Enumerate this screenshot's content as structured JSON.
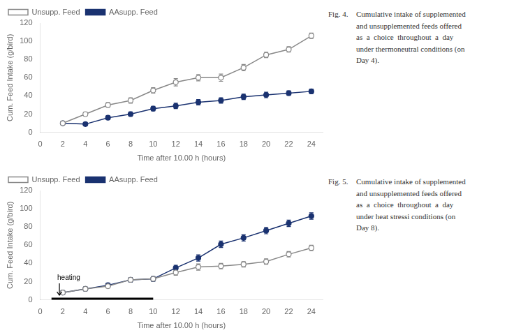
{
  "chart_data": [
    {
      "type": "line",
      "caption_title": "Fig. 4.",
      "caption": "Cumulative intake of supplemented\nand unsupplemented feeds offered\nas  a  choice  throughout  a  day\nunder thermoneutral conditions (on\nDay 4).",
      "xlabel": "Time after 10.00 h (hours)",
      "ylabel": "Cum. Feed Intake (g/bird)",
      "x": [
        2,
        4,
        6,
        8,
        10,
        12,
        14,
        16,
        18,
        20,
        22,
        24
      ],
      "series": [
        {
          "name": "Unsupp. Feed",
          "color": "#888888",
          "marker": "open_circle",
          "values": [
            10,
            20,
            30,
            35,
            46,
            55,
            60,
            60,
            71,
            85,
            91,
            106
          ],
          "errors": [
            1.5,
            2,
            2.5,
            3,
            3,
            4,
            3.5,
            4,
            3.5,
            3,
            3,
            3
          ]
        },
        {
          "name": "AAsupp. Feed",
          "color": "#1a3270",
          "marker": "circle",
          "values": [
            10,
            9,
            16,
            20,
            26,
            29,
            33,
            35,
            39,
            41,
            43,
            45
          ],
          "errors": [
            1,
            1.5,
            2,
            2.5,
            2.5,
            3,
            3,
            3,
            3,
            3,
            2.5,
            2.5
          ]
        }
      ],
      "xlim": [
        0,
        25
      ],
      "ylim": [
        0,
        120
      ],
      "xticks": [
        0,
        2,
        4,
        6,
        8,
        10,
        12,
        14,
        16,
        18,
        20,
        22,
        24
      ],
      "yticks": [
        0,
        20,
        40,
        60,
        80,
        100,
        120
      ],
      "grid": false,
      "legend": "upper left"
    },
    {
      "type": "line",
      "caption_title": "Fig. 5.",
      "caption": "Cumulative intake of supplemented\nand unsupplemented feeds offered\nas  a  choice  throughout  a  day\nunder heat stressi conditions (on\nDay 8).",
      "xlabel": "Time after 10.00 h (hours)",
      "ylabel": "Cum. Feed Intake (g/bird)",
      "x": [
        2,
        4,
        6,
        8,
        10,
        12,
        14,
        16,
        18,
        20,
        22,
        24
      ],
      "series": [
        {
          "name": "Unsupp. Feed",
          "color": "#888888",
          "marker": "open_circle",
          "values": [
            8,
            12,
            15,
            22,
            23,
            30,
            36,
            37,
            39,
            42,
            50,
            57
          ],
          "errors": [
            1.5,
            2,
            2,
            2.5,
            2.5,
            3,
            3.5,
            3,
            3,
            3,
            3,
            3
          ]
        },
        {
          "name": "AAsupp. Feed",
          "color": "#1a3270",
          "marker": "circle",
          "values": [
            8,
            12,
            16,
            22,
            23,
            35,
            46,
            61,
            68,
            76,
            84,
            92
          ],
          "errors": [
            1.5,
            2,
            2,
            2.5,
            2.5,
            3,
            3.5,
            3.5,
            3.5,
            3.5,
            3.5,
            3.5
          ]
        }
      ],
      "xlim": [
        0,
        25
      ],
      "ylim": [
        0,
        120
      ],
      "xticks": [
        0,
        2,
        4,
        6,
        8,
        10,
        12,
        14,
        16,
        18,
        20,
        22,
        24
      ],
      "yticks": [
        0,
        20,
        40,
        60,
        80,
        100,
        120
      ],
      "grid": false,
      "legend": "upper left",
      "annotations": [
        {
          "text": "heating",
          "x": 1.7,
          "y": 20,
          "arrow_y": [
            18,
            5
          ],
          "color": "black"
        }
      ],
      "heating_bar": {
        "x": [
          1,
          10
        ],
        "y": 0,
        "color": "black"
      }
    }
  ]
}
